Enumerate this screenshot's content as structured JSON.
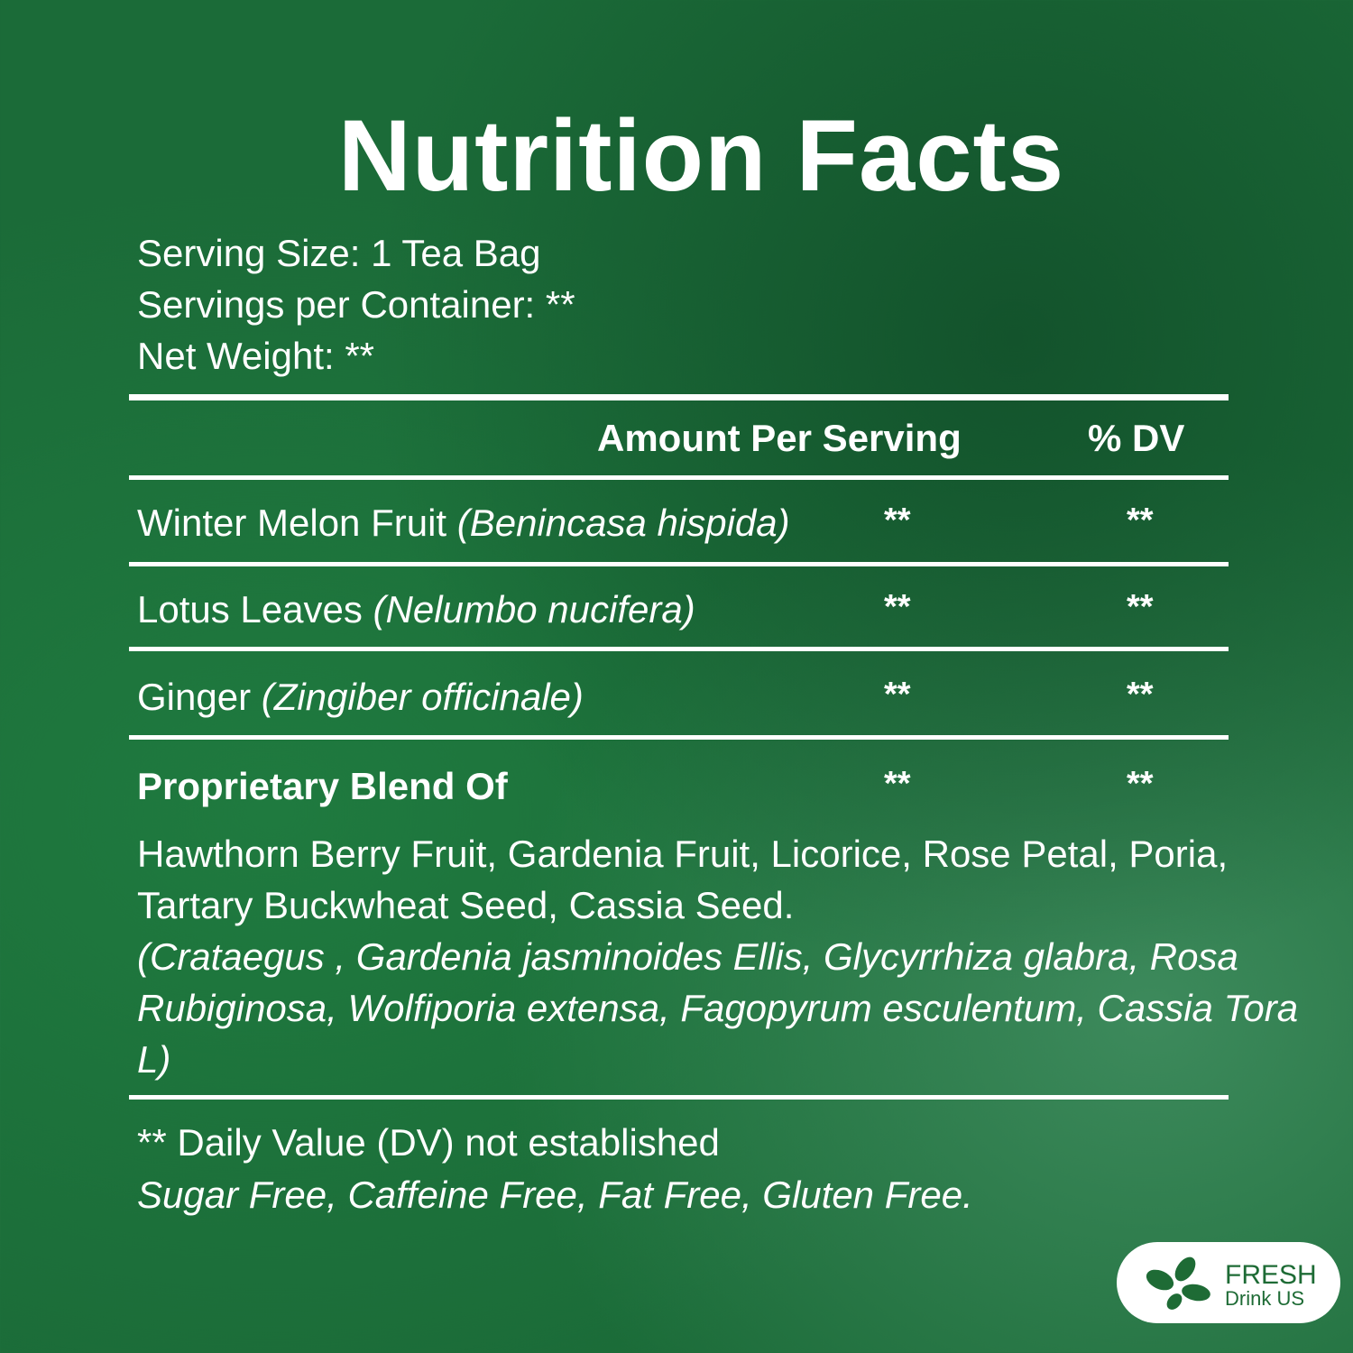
{
  "title": "Nutrition Facts",
  "serving_size": "Serving Size: 1 Tea Bag",
  "servings_per_container": "Servings per Container: **",
  "net_weight": "Net Weight: **",
  "header": {
    "amount": "Amount Per Serving",
    "dv": "% DV"
  },
  "rows": [
    {
      "name": "Winter Melon Fruit",
      "latin": "(Benincasa hispida)",
      "amount": "**",
      "dv": "**"
    },
    {
      "name": "Lotus Leaves",
      "latin": "(Nelumbo nucifera)",
      "amount": "**",
      "dv": "**"
    },
    {
      "name": "Ginger",
      "latin": "(Zingiber officinale)",
      "amount": "**",
      "dv": "**"
    },
    {
      "name": "Proprietary Blend Of",
      "latin": "",
      "amount": "**",
      "dv": "**"
    }
  ],
  "blend_ingredients": "Hawthorn Berry Fruit, Gardenia Fruit, Licorice, Rose Petal, Poria, Tartary Buckwheat Seed, Cassia Seed.",
  "blend_latin": "(Crataegus , Gardenia jasminoides Ellis, Glycyrrhiza glabra, Rosa Rubiginosa, Wolfiporia extensa, Fagopyrum esculentum, Cassia Tora L)",
  "footnote": "** Daily Value (DV) not established",
  "claims": "Sugar Free, Caffeine Free, Fat Free, Gluten Free.",
  "logo": {
    "line1": "FRESH",
    "line2": "Drink US",
    "color": "#1e6b35"
  },
  "colors": {
    "background": "#1b6b38",
    "text": "#ffffff"
  }
}
